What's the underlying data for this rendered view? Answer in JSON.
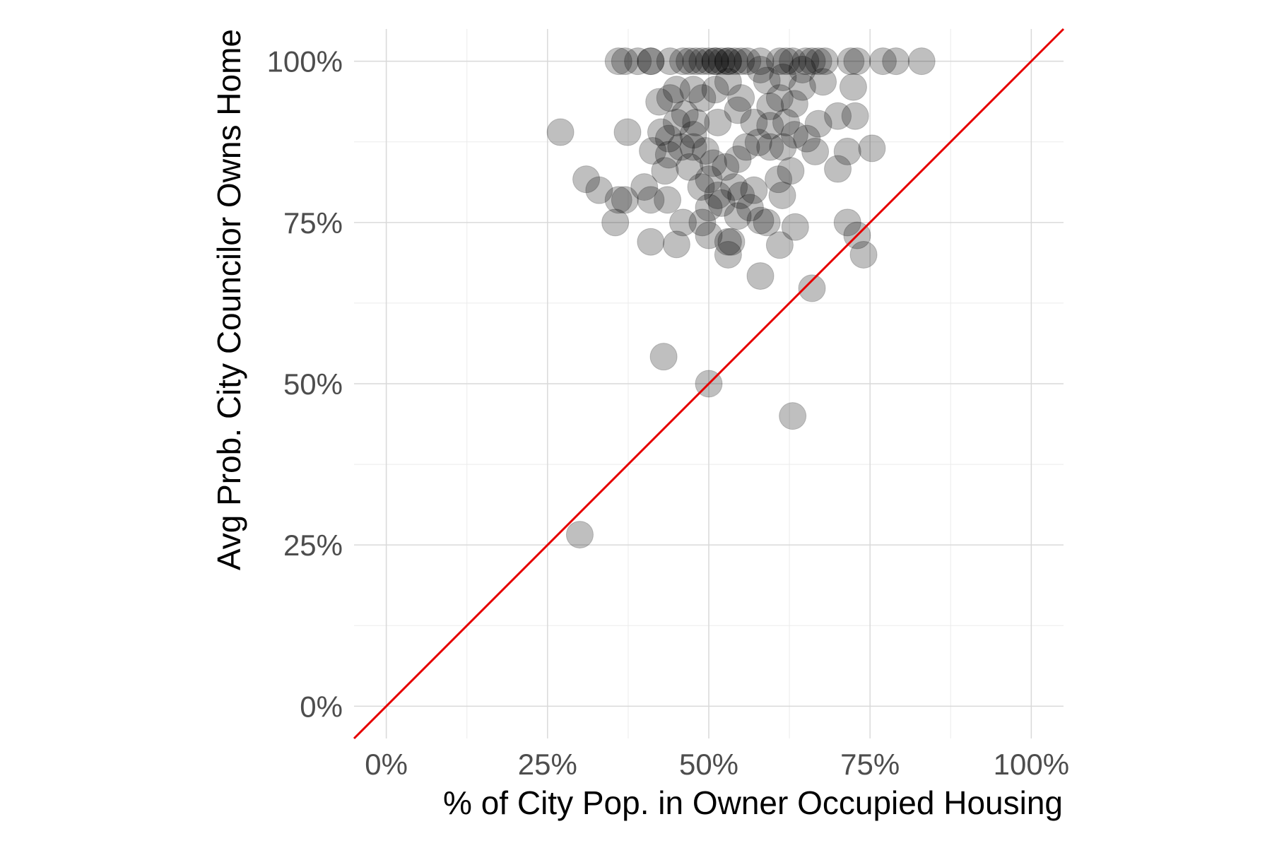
{
  "chart_data": {
    "type": "scatter",
    "xlabel": "% of City Pop. in Owner Occupied Housing",
    "ylabel": "Avg Prob. City Councilor Owns Home",
    "xlim": [
      -0.05,
      1.05
    ],
    "ylim": [
      -0.05,
      1.05
    ],
    "x_ticks": [
      0,
      0.25,
      0.5,
      0.75,
      1
    ],
    "x_tick_labels": [
      "0%",
      "25%",
      "50%",
      "75%",
      "100%"
    ],
    "y_ticks": [
      0,
      0.25,
      0.5,
      0.75,
      1
    ],
    "y_tick_labels": [
      "0%",
      "25%",
      "50%",
      "75%",
      "100%"
    ],
    "grid": true,
    "point_color": "#000000",
    "point_alpha": 0.25,
    "reference_line": {
      "type": "y=x",
      "color": "#e60000"
    },
    "points": [
      [
        0.36,
        1
      ],
      [
        0.37,
        1
      ],
      [
        0.39,
        1
      ],
      [
        0.41,
        1
      ],
      [
        0.41,
        1
      ],
      [
        0.44,
        1
      ],
      [
        0.46,
        1
      ],
      [
        0.47,
        1
      ],
      [
        0.48,
        1
      ],
      [
        0.49,
        1
      ],
      [
        0.5,
        1
      ],
      [
        0.51,
        1
      ],
      [
        0.51,
        1
      ],
      [
        0.52,
        1
      ],
      [
        0.53,
        1
      ],
      [
        0.53,
        1
      ],
      [
        0.54,
        1
      ],
      [
        0.55,
        1
      ],
      [
        0.56,
        1
      ],
      [
        0.58,
        1
      ],
      [
        0.61,
        1
      ],
      [
        0.62,
        1
      ],
      [
        0.63,
        1
      ],
      [
        0.65,
        1
      ],
      [
        0.66,
        1
      ],
      [
        0.67,
        1
      ],
      [
        0.68,
        1
      ],
      [
        0.72,
        1
      ],
      [
        0.73,
        1
      ],
      [
        0.77,
        1
      ],
      [
        0.79,
        1
      ],
      [
        0.83,
        1
      ],
      [
        0.27,
        0.89
      ],
      [
        0.374,
        0.89
      ],
      [
        0.31,
        0.817
      ],
      [
        0.33,
        0.8
      ],
      [
        0.355,
        0.75
      ],
      [
        0.36,
        0.785
      ],
      [
        0.37,
        0.785
      ],
      [
        0.4,
        0.805
      ],
      [
        0.41,
        0.785
      ],
      [
        0.436,
        0.785
      ],
      [
        0.41,
        0.72
      ],
      [
        0.45,
        0.716
      ],
      [
        0.46,
        0.75
      ],
      [
        0.49,
        0.75
      ],
      [
        0.5,
        0.73
      ],
      [
        0.53,
        0.72
      ],
      [
        0.53,
        0.7
      ],
      [
        0.535,
        0.72
      ],
      [
        0.58,
        0.667
      ],
      [
        0.66,
        0.648
      ],
      [
        0.43,
        0.542
      ],
      [
        0.5,
        0.5
      ],
      [
        0.63,
        0.45
      ],
      [
        0.3,
        0.266
      ],
      [
        0.715,
        0.75
      ],
      [
        0.73,
        0.73
      ],
      [
        0.74,
        0.7
      ],
      [
        0.61,
        0.715
      ],
      [
        0.634,
        0.743
      ],
      [
        0.58,
        0.753
      ],
      [
        0.59,
        0.75
      ],
      [
        0.753,
        0.865
      ],
      [
        0.715,
        0.86
      ],
      [
        0.7,
        0.833
      ],
      [
        0.665,
        0.86
      ],
      [
        0.67,
        0.903
      ],
      [
        0.7,
        0.915
      ],
      [
        0.727,
        0.915
      ],
      [
        0.724,
        0.96
      ],
      [
        0.677,
        0.968
      ],
      [
        0.645,
        0.96
      ],
      [
        0.633,
        0.934
      ],
      [
        0.61,
        0.943
      ],
      [
        0.59,
        0.97
      ],
      [
        0.58,
        0.987
      ],
      [
        0.55,
        0.943
      ],
      [
        0.53,
        0.968
      ],
      [
        0.51,
        0.956
      ],
      [
        0.49,
        0.943
      ],
      [
        0.476,
        0.956
      ],
      [
        0.45,
        0.956
      ],
      [
        0.44,
        0.943
      ],
      [
        0.423,
        0.937
      ],
      [
        0.463,
        0.918
      ],
      [
        0.48,
        0.905
      ],
      [
        0.514,
        0.905
      ],
      [
        0.545,
        0.924
      ],
      [
        0.57,
        0.905
      ],
      [
        0.595,
        0.9
      ],
      [
        0.62,
        0.905
      ],
      [
        0.633,
        0.886
      ],
      [
        0.615,
        0.867
      ],
      [
        0.595,
        0.867
      ],
      [
        0.577,
        0.874
      ],
      [
        0.558,
        0.867
      ],
      [
        0.545,
        0.848
      ],
      [
        0.526,
        0.836
      ],
      [
        0.507,
        0.842
      ],
      [
        0.495,
        0.861
      ],
      [
        0.476,
        0.867
      ],
      [
        0.457,
        0.867
      ],
      [
        0.438,
        0.88
      ],
      [
        0.426,
        0.89
      ],
      [
        0.413,
        0.861
      ],
      [
        0.432,
        0.83
      ],
      [
        0.47,
        0.836
      ],
      [
        0.5,
        0.817
      ],
      [
        0.514,
        0.792
      ],
      [
        0.488,
        0.805
      ],
      [
        0.539,
        0.805
      ],
      [
        0.55,
        0.792
      ],
      [
        0.564,
        0.773
      ],
      [
        0.545,
        0.76
      ],
      [
        0.52,
        0.78
      ],
      [
        0.5,
        0.773
      ],
      [
        0.608,
        0.817
      ],
      [
        0.627,
        0.83
      ],
      [
        0.614,
        0.792
      ],
      [
        0.57,
        0.8
      ],
      [
        0.652,
        0.88
      ],
      [
        0.595,
        0.93
      ],
      [
        0.615,
        0.975
      ],
      [
        0.645,
        0.987
      ],
      [
        0.45,
        0.905
      ],
      [
        0.476,
        0.886
      ],
      [
        0.438,
        0.855
      ]
    ]
  }
}
